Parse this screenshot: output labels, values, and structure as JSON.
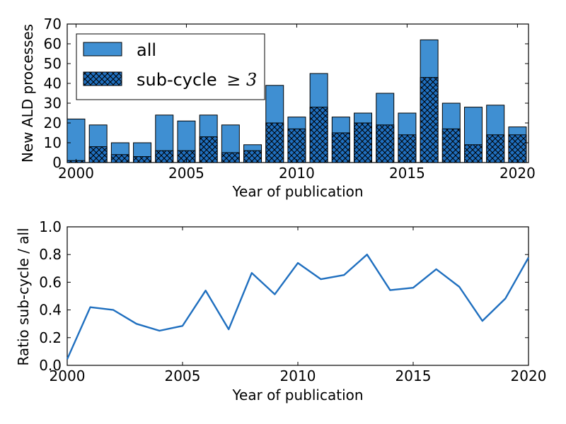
{
  "chart_data": [
    {
      "type": "bar",
      "stacked_overlay": true,
      "xlabel": "Year of publication",
      "ylabel": "New ALD processes",
      "xlim": [
        1999.6,
        2020.5
      ],
      "ylim": [
        0,
        70
      ],
      "xticks": [
        2000,
        2005,
        2010,
        2015,
        2020
      ],
      "yticks": [
        0,
        10,
        20,
        30,
        40,
        50,
        60,
        70
      ],
      "categories": [
        2000,
        2001,
        2002,
        2003,
        2004,
        2005,
        2006,
        2007,
        2008,
        2009,
        2010,
        2011,
        2012,
        2013,
        2014,
        2015,
        2016,
        2017,
        2018,
        2019,
        2020
      ],
      "series": [
        {
          "name": "all",
          "color": "#3f8fd2",
          "hatch": "none",
          "values": [
            22,
            19,
            10,
            10,
            24,
            21,
            24,
            19,
            9,
            39,
            23,
            45,
            23,
            25,
            35,
            25,
            62,
            30,
            28,
            29,
            18
          ]
        },
        {
          "name": "sub-cycle ≥ 3",
          "color": "#1f6fbf",
          "hatch": "crosshatch",
          "values": [
            1,
            8,
            4,
            3,
            6,
            6,
            13,
            5,
            6,
            20,
            17,
            28,
            15,
            20,
            19,
            14,
            43,
            17,
            9,
            14,
            14
          ]
        }
      ],
      "legend": {
        "placement": "top-left",
        "entries": [
          {
            "label": "all"
          },
          {
            "label_text": "sub-cycle",
            "label_math": "≥ 3"
          }
        ]
      },
      "grid": false
    },
    {
      "type": "line",
      "xlabel": "Year of publication",
      "ylabel": "Ratio sub-cycle / all",
      "xlim": [
        2000,
        2020
      ],
      "ylim": [
        0,
        1.0
      ],
      "xticks": [
        2000,
        2005,
        2010,
        2015,
        2020
      ],
      "yticks": [
        "0.0",
        "0.2",
        "0.4",
        "0.6",
        "0.8",
        "1.0"
      ],
      "series": [
        {
          "color": "#1f6fbf",
          "x": [
            2000,
            2001,
            2002,
            2003,
            2004,
            2005,
            2006,
            2007,
            2008,
            2009,
            2010,
            2011,
            2012,
            2013,
            2014,
            2015,
            2016,
            2017,
            2018,
            2019,
            2020
          ],
          "y": [
            0.045,
            0.42,
            0.4,
            0.3,
            0.25,
            0.285,
            0.54,
            0.26,
            0.667,
            0.513,
            0.739,
            0.622,
            0.652,
            0.8,
            0.543,
            0.56,
            0.694,
            0.567,
            0.321,
            0.483,
            0.778
          ]
        }
      ],
      "grid": false
    }
  ]
}
